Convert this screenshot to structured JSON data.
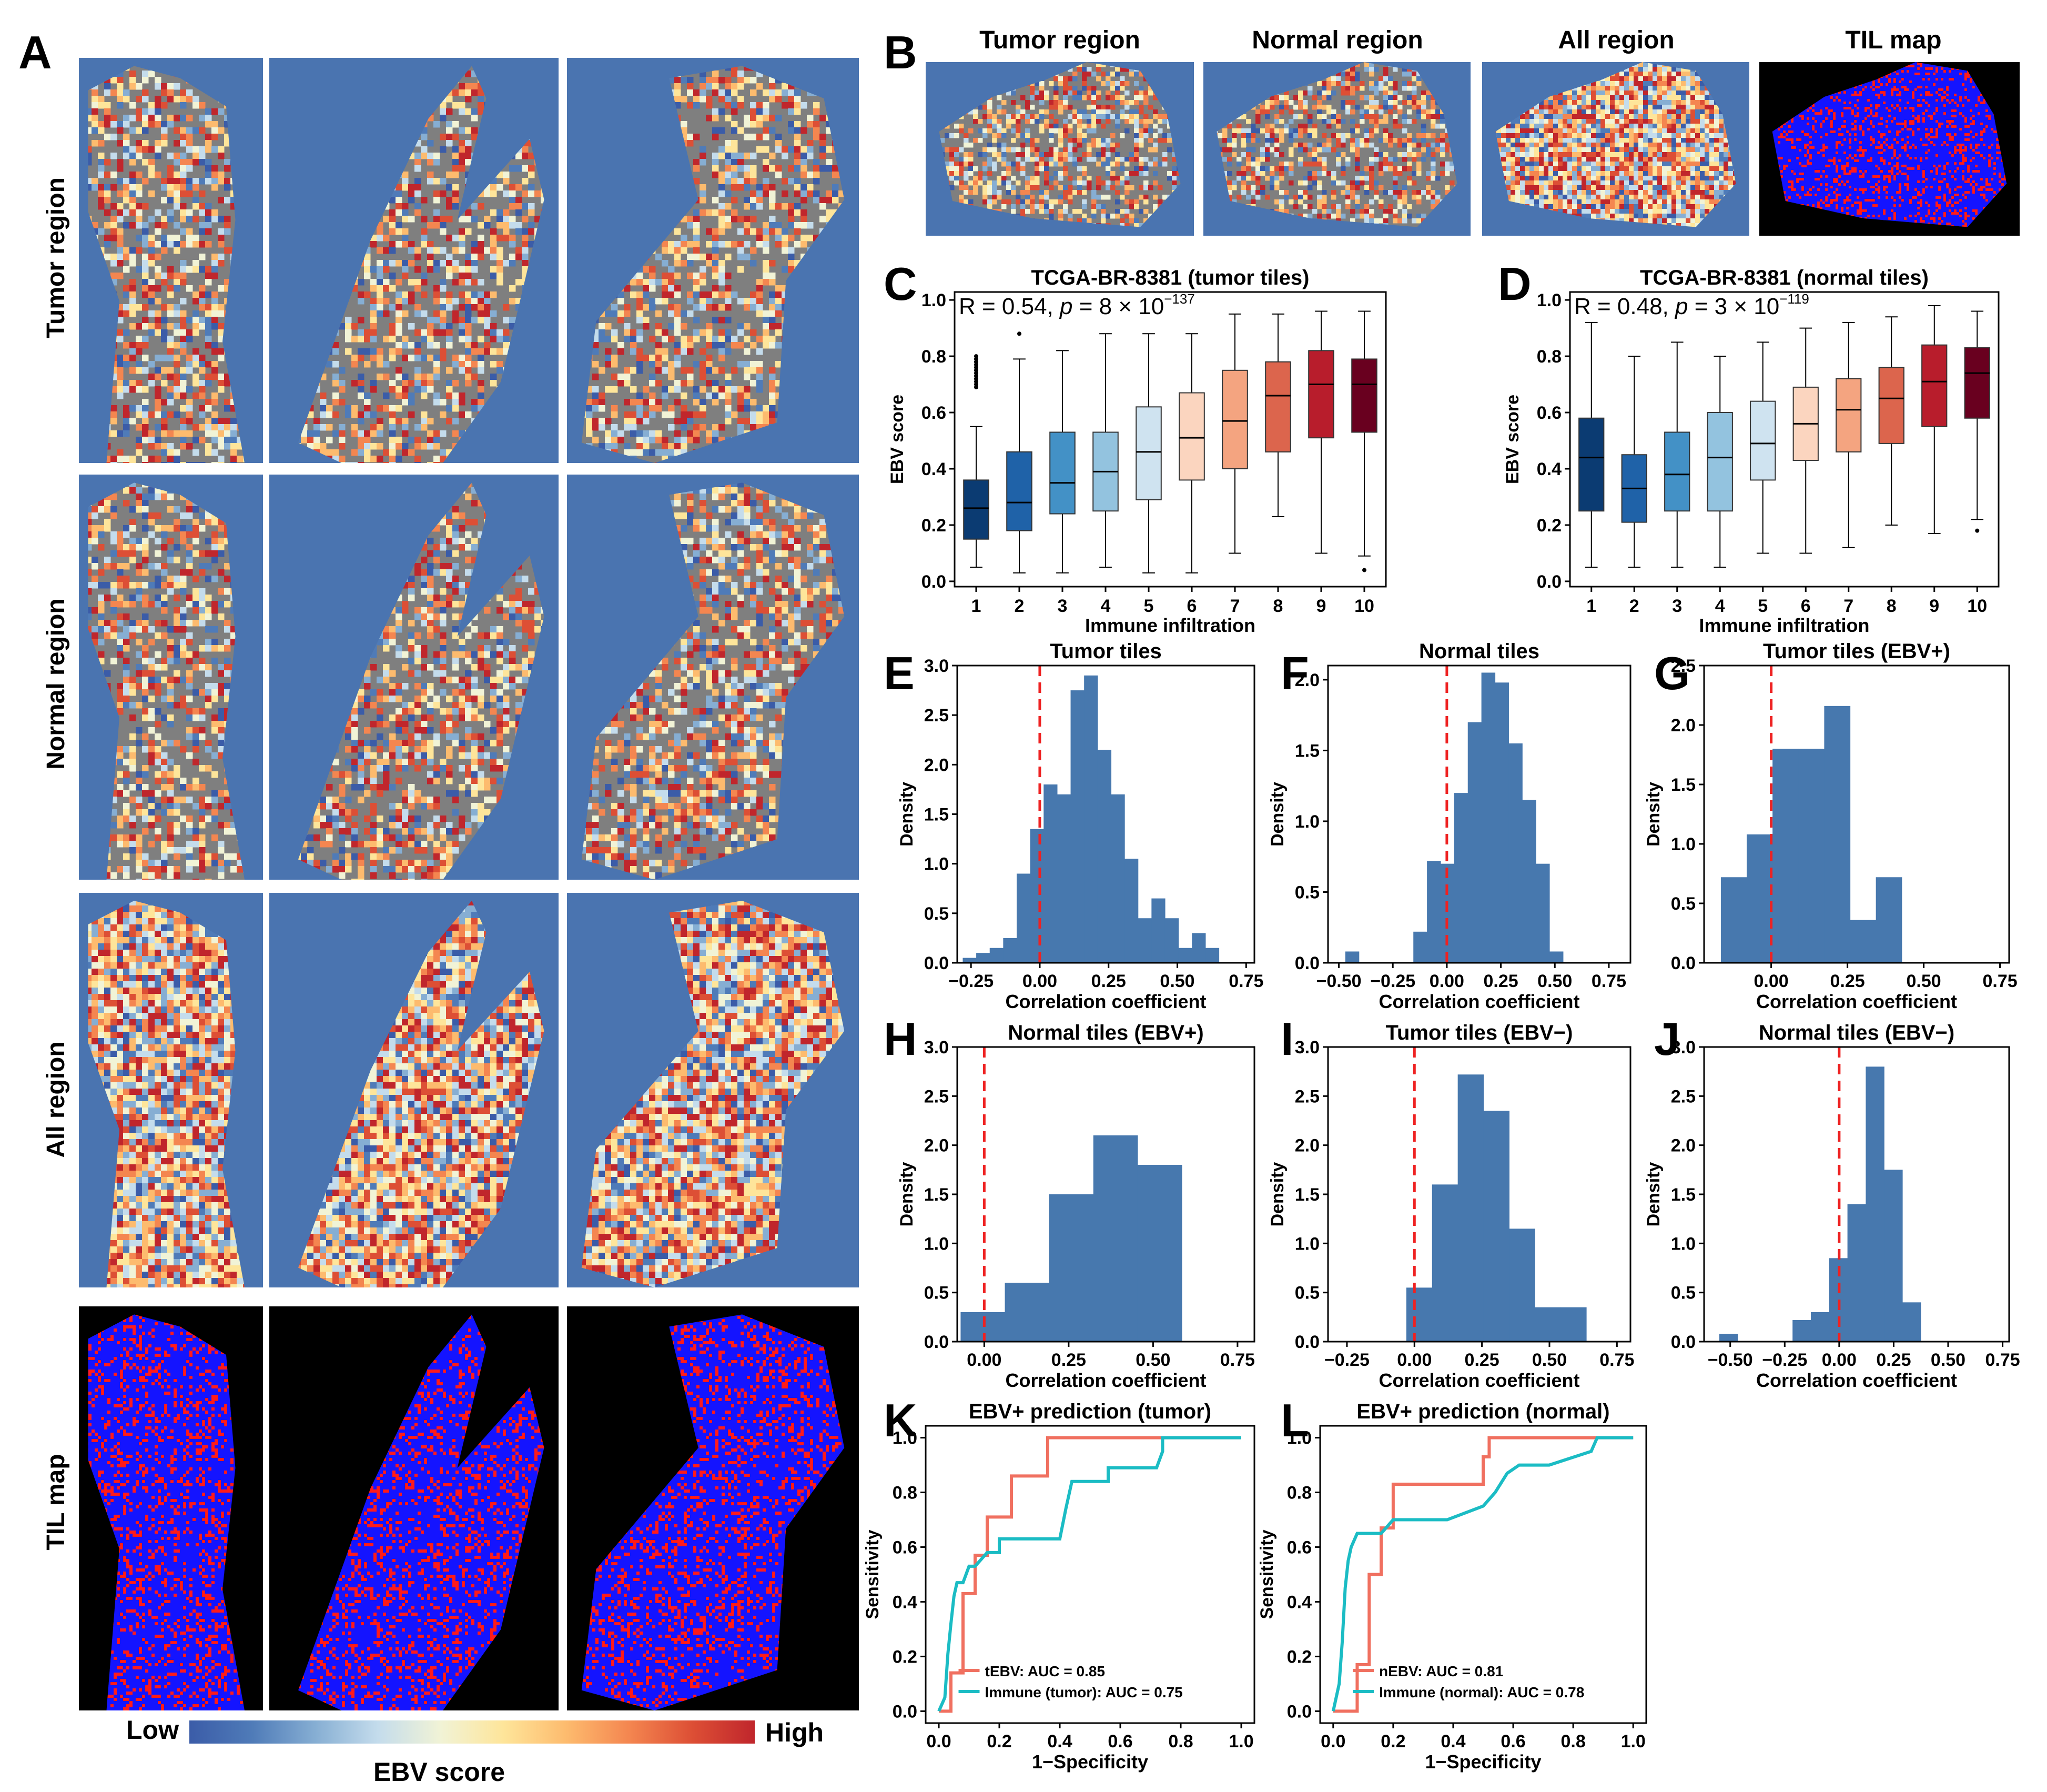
{
  "panel_letters": [
    "A",
    "B",
    "C",
    "D",
    "E",
    "F",
    "G",
    "H",
    "I",
    "J",
    "K",
    "L"
  ],
  "panel_a": {
    "row_labels": [
      "Tumor region",
      "Normal region",
      "All region",
      "TIL map"
    ],
    "colorbar": {
      "low": "Low",
      "high": "High",
      "label": "EBV score"
    }
  },
  "panel_b": {
    "titles": [
      "Tumor region",
      "Normal region",
      "All region",
      "TIL map"
    ]
  },
  "colors": {
    "heat_bg": "#4a74b0",
    "tissue_gray": "#7f7f7f",
    "hist_fill": "#4778ae",
    "dashed_line": "#ee2222",
    "til_blue": "#1414ff",
    "til_red": "#ff1a1a",
    "roc_red": "#f07060",
    "roc_teal": "#1bbcc4",
    "colormap": [
      "#3b5ca8",
      "#4f7bb8",
      "#86aed3",
      "#c4dcec",
      "#f1f3d6",
      "#fee59a",
      "#fdbb6e",
      "#f48650",
      "#dd4f35",
      "#c0262c"
    ]
  },
  "chart_data": [
    {
      "id": "C",
      "type": "box",
      "title": "TCGA-BR-8381 (tumor tiles)",
      "stat_prefix": "R = 0.54, ",
      "stat_p": "p",
      "stat_mid": " = 8 × 10",
      "stat_exp": "−137",
      "xlabel": "Immune infiltration",
      "ylabel": "EBV score",
      "categories": [
        "1",
        "2",
        "3",
        "4",
        "5",
        "6",
        "7",
        "8",
        "9",
        "10"
      ],
      "ylim": [
        0,
        1.0
      ],
      "yticks": [
        0.0,
        0.2,
        0.4,
        0.6,
        0.8,
        1.0
      ],
      "ytick_labels": [
        "0.0",
        "0.2",
        "0.4",
        "0.6",
        "0.8",
        "1.0"
      ],
      "boxes": [
        {
          "min": 0.05,
          "q1": 0.15,
          "median": 0.26,
          "q3": 0.36,
          "max": 0.55
        },
        {
          "min": 0.03,
          "q1": 0.18,
          "median": 0.28,
          "q3": 0.46,
          "max": 0.79
        },
        {
          "min": 0.03,
          "q1": 0.24,
          "median": 0.35,
          "q3": 0.53,
          "max": 0.82
        },
        {
          "min": 0.05,
          "q1": 0.25,
          "median": 0.39,
          "q3": 0.53,
          "max": 0.88
        },
        {
          "min": 0.03,
          "q1": 0.29,
          "median": 0.46,
          "q3": 0.62,
          "max": 0.88
        },
        {
          "min": 0.03,
          "q1": 0.36,
          "median": 0.51,
          "q3": 0.67,
          "max": 0.88
        },
        {
          "min": 0.1,
          "q1": 0.4,
          "median": 0.57,
          "q3": 0.75,
          "max": 0.95
        },
        {
          "min": 0.23,
          "q1": 0.46,
          "median": 0.66,
          "q3": 0.78,
          "max": 0.95
        },
        {
          "min": 0.1,
          "q1": 0.51,
          "median": 0.7,
          "q3": 0.82,
          "max": 0.96
        },
        {
          "min": 0.09,
          "q1": 0.53,
          "median": 0.7,
          "q3": 0.79,
          "max": 0.96
        }
      ],
      "outliers": [
        [
          1,
          0.8
        ],
        [
          1,
          0.79
        ],
        [
          1,
          0.78
        ],
        [
          1,
          0.77
        ],
        [
          1,
          0.76
        ],
        [
          1,
          0.75
        ],
        [
          1,
          0.74
        ],
        [
          1,
          0.73
        ],
        [
          1,
          0.72
        ],
        [
          1,
          0.71
        ],
        [
          1,
          0.7
        ],
        [
          1,
          0.69
        ],
        [
          2,
          0.88
        ],
        [
          10,
          0.04
        ]
      ],
      "box_colors": [
        "#0b3b72",
        "#1f62a8",
        "#4391c6",
        "#93c3df",
        "#cfe3f0",
        "#fbd5bf",
        "#f4a480",
        "#dc654d",
        "#b81d2c",
        "#69001f"
      ]
    },
    {
      "id": "D",
      "type": "box",
      "title": "TCGA-BR-8381 (normal tiles)",
      "stat_prefix": "R = 0.48, ",
      "stat_p": "p",
      "stat_mid": " = 3 × 10",
      "stat_exp": "−119",
      "xlabel": "Immune infiltration",
      "ylabel": "EBV score",
      "categories": [
        "1",
        "2",
        "3",
        "4",
        "5",
        "6",
        "7",
        "8",
        "9",
        "10"
      ],
      "ylim": [
        0,
        1.0
      ],
      "yticks": [
        0.0,
        0.2,
        0.4,
        0.6,
        0.8,
        1.0
      ],
      "ytick_labels": [
        "0.0",
        "0.2",
        "0.4",
        "0.6",
        "0.8",
        "1.0"
      ],
      "boxes": [
        {
          "min": 0.05,
          "q1": 0.25,
          "median": 0.44,
          "q3": 0.58,
          "max": 0.92
        },
        {
          "min": 0.05,
          "q1": 0.21,
          "median": 0.33,
          "q3": 0.45,
          "max": 0.8
        },
        {
          "min": 0.05,
          "q1": 0.25,
          "median": 0.38,
          "q3": 0.53,
          "max": 0.85
        },
        {
          "min": 0.05,
          "q1": 0.25,
          "median": 0.44,
          "q3": 0.6,
          "max": 0.8
        },
        {
          "min": 0.1,
          "q1": 0.36,
          "median": 0.49,
          "q3": 0.64,
          "max": 0.85
        },
        {
          "min": 0.1,
          "q1": 0.43,
          "median": 0.56,
          "q3": 0.69,
          "max": 0.9
        },
        {
          "min": 0.12,
          "q1": 0.46,
          "median": 0.61,
          "q3": 0.72,
          "max": 0.92
        },
        {
          "min": 0.2,
          "q1": 0.49,
          "median": 0.65,
          "q3": 0.76,
          "max": 0.94
        },
        {
          "min": 0.17,
          "q1": 0.55,
          "median": 0.71,
          "q3": 0.84,
          "max": 0.98
        },
        {
          "min": 0.22,
          "q1": 0.58,
          "median": 0.74,
          "q3": 0.83,
          "max": 0.96
        }
      ],
      "outliers": [
        [
          10,
          0.18
        ]
      ],
      "box_colors": [
        "#0b3b72",
        "#1f62a8",
        "#4391c6",
        "#93c3df",
        "#cfe3f0",
        "#fbd5bf",
        "#f4a480",
        "#dc654d",
        "#b81d2c",
        "#69001f"
      ]
    },
    {
      "id": "E",
      "type": "histogram",
      "title": "Tumor tiles",
      "xlabel": "Correlation coefficient",
      "ylabel": "Density",
      "xlim": [
        -0.3,
        0.78
      ],
      "ylim": [
        0,
        3.0
      ],
      "xticks": [
        -0.25,
        0.0,
        0.25,
        0.5,
        0.75
      ],
      "xtick_labels": [
        "−0.25",
        "0.00",
        "0.25",
        "0.50",
        "0.75"
      ],
      "yticks": [
        0,
        0.5,
        1.0,
        1.5,
        2.0,
        2.5,
        3.0
      ],
      "ytick_labels": [
        "0.0",
        "0.5",
        "1.0",
        "1.5",
        "2.0",
        "2.5",
        "3.0"
      ],
      "bin_start": -0.28,
      "bin_width": 0.049,
      "values": [
        0.05,
        0.1,
        0.15,
        0.25,
        0.9,
        1.35,
        1.8,
        1.7,
        2.75,
        2.9,
        2.15,
        1.7,
        1.05,
        0.45,
        0.65,
        0.45,
        0.15,
        0.3,
        0.15
      ],
      "vline": 0.0
    },
    {
      "id": "F",
      "type": "histogram",
      "title": "Normal tiles",
      "xlabel": "Correlation coefficient",
      "ylabel": "Density",
      "xlim": [
        -0.55,
        0.85
      ],
      "ylim": [
        0,
        2.1
      ],
      "xticks": [
        -0.5,
        -0.25,
        0.0,
        0.25,
        0.5,
        0.75
      ],
      "xtick_labels": [
        "−0.50",
        "−0.25",
        "0.00",
        "0.25",
        "0.50",
        "0.75"
      ],
      "yticks": [
        0,
        0.5,
        1.0,
        1.5,
        2.0
      ],
      "ytick_labels": [
        "0.0",
        "0.5",
        "1.0",
        "1.5",
        "2.0"
      ],
      "bin_start": -0.47,
      "bin_width": 0.063,
      "values": [
        0.08,
        0,
        0,
        0,
        0,
        0.22,
        0.72,
        0.7,
        1.2,
        1.7,
        2.05,
        1.98,
        1.55,
        1.15,
        0.7,
        0.08
      ],
      "vline": 0.0
    },
    {
      "id": "G",
      "type": "histogram",
      "title": "Tumor tiles (EBV+)",
      "xlabel": "Correlation coefficient",
      "ylabel": "Density",
      "xlim": [
        -0.22,
        0.78
      ],
      "ylim": [
        0,
        2.5
      ],
      "xticks": [
        0.0,
        0.25,
        0.5,
        0.75
      ],
      "xtick_labels": [
        "0.00",
        "0.25",
        "0.50",
        "0.75"
      ],
      "yticks": [
        0,
        0.5,
        1.0,
        1.5,
        2.0,
        2.5
      ],
      "ytick_labels": [
        "0.0",
        "0.5",
        "1.0",
        "1.5",
        "2.0",
        "2.5"
      ],
      "bin_start": -0.165,
      "bin_width": 0.0847,
      "values": [
        0.72,
        1.08,
        1.8,
        1.8,
        2.16,
        0.36,
        0.72
      ],
      "vline": 0.0
    },
    {
      "id": "H",
      "type": "histogram",
      "title": "Normal tiles (EBV+)",
      "xlabel": "Correlation coefficient",
      "ylabel": "Density",
      "xlim": [
        -0.08,
        0.8
      ],
      "ylim": [
        0,
        3.0
      ],
      "xticks": [
        0.0,
        0.25,
        0.5,
        0.75
      ],
      "xtick_labels": [
        "0.00",
        "0.25",
        "0.50",
        "0.75"
      ],
      "yticks": [
        0,
        0.5,
        1.0,
        1.5,
        2.0,
        2.5,
        3.0
      ],
      "ytick_labels": [
        "0.0",
        "0.5",
        "1.0",
        "1.5",
        "2.0",
        "2.5",
        "3.0"
      ],
      "bin_start": -0.07,
      "bin_width": 0.131,
      "values": [
        0.3,
        0.6,
        1.5,
        2.1,
        1.8
      ],
      "vline": 0.0
    },
    {
      "id": "I",
      "type": "histogram",
      "title": "Tumor tiles (EBV−)",
      "xlabel": "Correlation coefficient",
      "ylabel": "Density",
      "xlim": [
        -0.32,
        0.8
      ],
      "ylim": [
        0,
        3.0
      ],
      "xticks": [
        -0.25,
        0.0,
        0.25,
        0.5,
        0.75
      ],
      "xtick_labels": [
        "−0.25",
        "0.00",
        "0.25",
        "0.50",
        "0.75"
      ],
      "yticks": [
        0,
        0.5,
        1.0,
        1.5,
        2.0,
        2.5,
        3.0
      ],
      "ytick_labels": [
        "0.0",
        "0.5",
        "1.0",
        "1.5",
        "2.0",
        "2.5",
        "3.0"
      ],
      "bin_start": -0.03,
      "bin_width": 0.0952,
      "values": [
        0.55,
        1.6,
        2.72,
        2.35,
        1.15,
        0.35,
        0.35
      ],
      "vline": 0.0
    },
    {
      "id": "J",
      "type": "histogram",
      "title": "Normal tiles (EBV−)",
      "xlabel": "Correlation coefficient",
      "ylabel": "Density",
      "xlim": [
        -0.62,
        0.78
      ],
      "ylim": [
        0,
        3.0
      ],
      "xticks": [
        -0.5,
        -0.25,
        0.0,
        0.25,
        0.5,
        0.75
      ],
      "xtick_labels": [
        "−0.50",
        "−0.25",
        "0.00",
        "0.25",
        "0.50",
        "0.75"
      ],
      "yticks": [
        0,
        0.5,
        1.0,
        1.5,
        2.0,
        2.5,
        3.0
      ],
      "ytick_labels": [
        "0.0",
        "0.5",
        "1.0",
        "1.5",
        "2.0",
        "2.5",
        "3.0"
      ],
      "bin_start": -0.55,
      "bin_width": 0.084,
      "values": [
        0.08,
        0,
        0,
        0,
        0.22,
        0.3,
        0.85,
        1.4,
        2.8,
        1.75,
        0.4
      ],
      "vline": 0.0
    },
    {
      "id": "K",
      "type": "line",
      "title": "EBV+ prediction (tumor)",
      "xlabel": "1−Specificity",
      "ylabel": "Sensitivity",
      "xlim": [
        0,
        1.0
      ],
      "ylim": [
        0,
        1.0
      ],
      "xticks": [
        0,
        0.2,
        0.4,
        0.6,
        0.8,
        1.0
      ],
      "xtick_labels": [
        "0.0",
        "0.2",
        "0.4",
        "0.6",
        "0.8",
        "1.0"
      ],
      "yticks": [
        0,
        0.2,
        0.4,
        0.6,
        0.8,
        1.0
      ],
      "ytick_labels": [
        "0.0",
        "0.2",
        "0.4",
        "0.6",
        "0.8",
        "1.0"
      ],
      "series": [
        {
          "name": "tEBV: AUC = 0.85",
          "x": [
            0,
            0.04,
            0.04,
            0.08,
            0.08,
            0.12,
            0.12,
            0.16,
            0.16,
            0.24,
            0.24,
            0.36,
            0.36,
            0.44,
            1.0
          ],
          "y": [
            0,
            0,
            0.14,
            0.14,
            0.43,
            0.43,
            0.57,
            0.57,
            0.71,
            0.71,
            0.86,
            0.86,
            1.0,
            1.0,
            1.0
          ]
        },
        {
          "name": "Immune (tumor): AUC = 0.75",
          "x": [
            0,
            0.02,
            0.03,
            0.04,
            0.05,
            0.06,
            0.08,
            0.1,
            0.12,
            0.16,
            0.2,
            0.2,
            0.26,
            0.32,
            0.4,
            0.42,
            0.44,
            0.52,
            0.56,
            0.56,
            0.58,
            0.62,
            0.72,
            0.74,
            0.74,
            1.0
          ],
          "y": [
            0,
            0.05,
            0.21,
            0.32,
            0.42,
            0.47,
            0.47,
            0.53,
            0.53,
            0.58,
            0.58,
            0.63,
            0.63,
            0.63,
            0.63,
            0.74,
            0.84,
            0.84,
            0.84,
            0.89,
            0.89,
            0.89,
            0.89,
            0.95,
            1.0,
            1.0
          ]
        }
      ]
    },
    {
      "id": "L",
      "type": "line",
      "title": "EBV+ prediction (normal)",
      "xlabel": "1−Specificity",
      "ylabel": "Sensitivity",
      "xlim": [
        0,
        1.0
      ],
      "ylim": [
        0,
        1.0
      ],
      "xticks": [
        0,
        0.2,
        0.4,
        0.6,
        0.8,
        1.0
      ],
      "xtick_labels": [
        "0.0",
        "0.2",
        "0.4",
        "0.6",
        "0.8",
        "1.0"
      ],
      "yticks": [
        0,
        0.2,
        0.4,
        0.6,
        0.8,
        1.0
      ],
      "ytick_labels": [
        "0.0",
        "0.2",
        "0.4",
        "0.6",
        "0.8",
        "1.0"
      ],
      "series": [
        {
          "name": "nEBV: AUC = 0.81",
          "x": [
            0,
            0.08,
            0.08,
            0.12,
            0.12,
            0.16,
            0.16,
            0.2,
            0.2,
            0.5,
            0.5,
            0.52,
            0.52,
            1.0
          ],
          "y": [
            0,
            0,
            0.17,
            0.17,
            0.5,
            0.5,
            0.67,
            0.67,
            0.83,
            0.83,
            0.93,
            0.93,
            1.0,
            1.0
          ]
        },
        {
          "name": "Immune (normal): AUC = 0.78",
          "x": [
            0,
            0.02,
            0.03,
            0.04,
            0.05,
            0.06,
            0.08,
            0.1,
            0.12,
            0.16,
            0.2,
            0.24,
            0.3,
            0.38,
            0.5,
            0.54,
            0.58,
            0.62,
            0.72,
            0.86,
            0.88,
            1.0
          ],
          "y": [
            0,
            0.1,
            0.25,
            0.45,
            0.55,
            0.6,
            0.65,
            0.65,
            0.65,
            0.65,
            0.7,
            0.7,
            0.7,
            0.7,
            0.75,
            0.8,
            0.87,
            0.9,
            0.9,
            0.95,
            1.0,
            1.0
          ]
        }
      ]
    }
  ]
}
